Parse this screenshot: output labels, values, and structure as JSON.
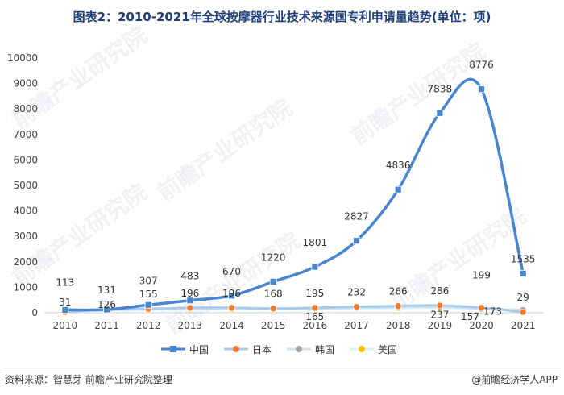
{
  "title": "图表2：2010-2021年全球按摩器行业技术来源国专利申请量趋势(单位：项)",
  "watermark": "前瞻产业研究院",
  "footer": {
    "source": "资料来源：智慧芽 前瞻产业研究院整理",
    "brand": "@前瞻经济学人APP"
  },
  "chart_data": {
    "type": "line",
    "x": [
      "2010",
      "2011",
      "2012",
      "2013",
      "2014",
      "2015",
      "2016",
      "2017",
      "2018",
      "2019",
      "2020",
      "2021"
    ],
    "ylim": [
      0,
      10000
    ],
    "yticks": [
      "0",
      "1000",
      "2000",
      "3000",
      "4000",
      "5000",
      "6000",
      "7000",
      "8000",
      "9000",
      "10000"
    ],
    "grid": false,
    "legend": "bottom",
    "series": [
      {
        "name": "中国",
        "color": "#4a86d0",
        "marker": "square",
        "values": [
          113,
          126,
          307,
          483,
          670,
          1220,
          1801,
          2827,
          4836,
          7838,
          8776,
          1535
        ],
        "labels": [
          "113",
          "126",
          "307",
          "483",
          "670",
          "1220",
          "1801",
          "2827",
          "4836",
          "7838",
          "8776",
          "1535"
        ]
      },
      {
        "name": "日本",
        "color": "#ed7d31",
        "marker": "circle",
        "values": [
          31,
          131,
          155,
          196,
          196,
          168,
          195,
          232,
          266,
          286,
          199,
          29
        ],
        "labels": [
          "31",
          "131",
          "155",
          "196",
          "196",
          "168",
          "195",
          "232",
          "266",
          "286",
          "199",
          "29"
        ]
      },
      {
        "name": "韩国",
        "color": "#a5a5a5",
        "marker": "circle",
        "values": [
          120,
          120,
          150,
          170,
          180,
          175,
          165,
          200,
          230,
          237,
          157,
          110
        ],
        "labels": [
          "",
          "",
          "",
          "",
          "",
          "",
          "165",
          "",
          "",
          "237",
          "157",
          ""
        ]
      },
      {
        "name": "美国",
        "color": "#ffc000",
        "marker": "circle",
        "values": [
          80,
          90,
          110,
          130,
          140,
          140,
          150,
          180,
          190,
          200,
          173,
          60
        ],
        "labels": [
          "",
          "",
          "",
          "",
          "",
          "",
          "",
          "",
          "",
          "",
          "173",
          ""
        ]
      }
    ]
  }
}
